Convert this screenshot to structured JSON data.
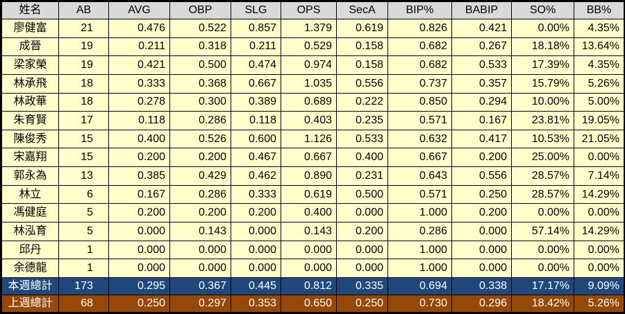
{
  "table": {
    "columns": [
      "姓名",
      "AB",
      "AVG",
      "OBP",
      "SLG",
      "OPS",
      "SecA",
      "BIP%",
      "BABIP",
      "SO%",
      "BB%"
    ],
    "rows": [
      [
        "廖健富",
        "21",
        "0.476",
        "0.522",
        "0.857",
        "1.379",
        "0.619",
        "0.826",
        "0.421",
        "0.00%",
        "4.35%"
      ],
      [
        "成晉",
        "19",
        "0.211",
        "0.318",
        "0.211",
        "0.529",
        "0.158",
        "0.682",
        "0.267",
        "18.18%",
        "13.64%"
      ],
      [
        "梁家榮",
        "19",
        "0.421",
        "0.500",
        "0.474",
        "0.974",
        "0.158",
        "0.682",
        "0.533",
        "17.39%",
        "4.35%"
      ],
      [
        "林承飛",
        "18",
        "0.333",
        "0.368",
        "0.667",
        "1.035",
        "0.556",
        "0.737",
        "0.357",
        "15.79%",
        "5.26%"
      ],
      [
        "林政華",
        "18",
        "0.278",
        "0.300",
        "0.389",
        "0.689",
        "0.222",
        "0.850",
        "0.294",
        "10.00%",
        "5.00%"
      ],
      [
        "朱育賢",
        "17",
        "0.118",
        "0.286",
        "0.118",
        "0.403",
        "0.235",
        "0.571",
        "0.167",
        "23.81%",
        "19.05%"
      ],
      [
        "陳俊秀",
        "15",
        "0.400",
        "0.526",
        "0.600",
        "1.126",
        "0.533",
        "0.632",
        "0.417",
        "10.53%",
        "21.05%"
      ],
      [
        "宋嘉翔",
        "15",
        "0.200",
        "0.200",
        "0.467",
        "0.667",
        "0.400",
        "0.667",
        "0.200",
        "25.00%",
        "0.00%"
      ],
      [
        "郭永為",
        "13",
        "0.385",
        "0.429",
        "0.462",
        "0.890",
        "0.231",
        "0.643",
        "0.556",
        "28.57%",
        "7.14%"
      ],
      [
        "林立",
        "6",
        "0.167",
        "0.286",
        "0.333",
        "0.619",
        "0.500",
        "0.571",
        "0.250",
        "28.57%",
        "14.29%"
      ],
      [
        "馮健庭",
        "5",
        "0.200",
        "0.200",
        "0.200",
        "0.400",
        "0.000",
        "1.000",
        "0.200",
        "0.00%",
        "0.00%"
      ],
      [
        "林泓育",
        "5",
        "0.000",
        "0.143",
        "0.000",
        "0.143",
        "0.200",
        "0.286",
        "0.000",
        "57.14%",
        "14.29%"
      ],
      [
        "邱丹",
        "1",
        "0.000",
        "0.000",
        "0.000",
        "0.000",
        "0.000",
        "1.000",
        "0.000",
        "0.00%",
        "0.00%"
      ],
      [
        "余德龍",
        "1",
        "0.000",
        "0.000",
        "0.000",
        "0.000",
        "0.000",
        "1.000",
        "0.000",
        "0.00%",
        "0.00%"
      ]
    ],
    "totals": [
      {
        "id": "this-week",
        "values": [
          "本週總計",
          "173",
          "0.295",
          "0.367",
          "0.445",
          "0.812",
          "0.335",
          "0.694",
          "0.338",
          "17.17%",
          "9.09%"
        ]
      },
      {
        "id": "last-week",
        "values": [
          "上週總計",
          "68",
          "0.250",
          "0.297",
          "0.353",
          "0.650",
          "0.250",
          "0.730",
          "0.296",
          "18.42%",
          "5.26%"
        ]
      }
    ]
  },
  "colors": {
    "header_bg": "#d9d9d9",
    "row_bg": "#ffffcc",
    "this_week_bg": "#1f497d",
    "last_week_bg": "#974706",
    "border": "#000000"
  }
}
